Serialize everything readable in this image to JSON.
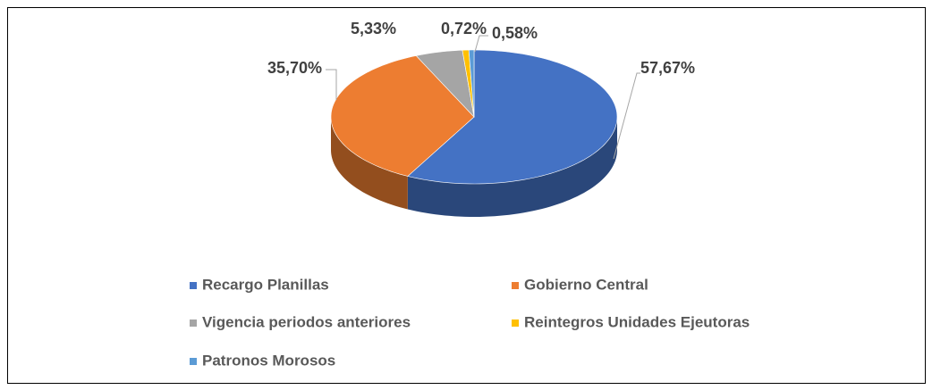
{
  "chart_data": {
    "type": "pie",
    "categories": [
      "Recargo Planillas",
      "Gobierno Central",
      "Vigencia periodos anteriores",
      "Reintegros Unidades Ejeutoras",
      "Patronos Morosos"
    ],
    "values": [
      57.67,
      35.7,
      5.33,
      0.72,
      0.58
    ],
    "value_labels": [
      "57,67%",
      "35,70%",
      "5,33%",
      "0,72%",
      "0,58%"
    ],
    "colors": [
      "#4472c4",
      "#ed7d31",
      "#a5a5a5",
      "#ffc000",
      "#5b9bd5"
    ],
    "legend": "bottom"
  }
}
